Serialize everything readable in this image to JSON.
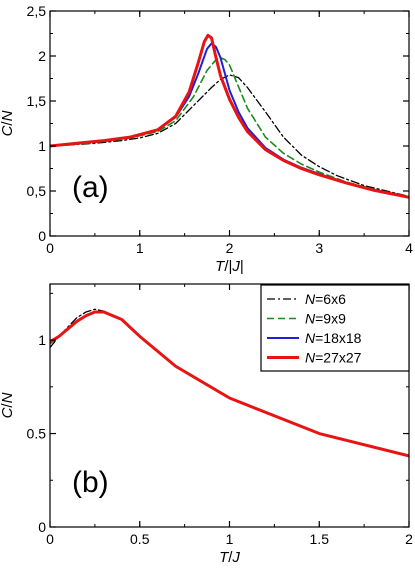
{
  "chart_data": [
    {
      "type": "line",
      "panel_label": "(a)",
      "xlabel_parts": [
        "T",
        "/|",
        "J",
        "|"
      ],
      "ylabel_parts": [
        "C",
        "/",
        "N"
      ],
      "xlim": [
        0,
        4
      ],
      "ylim": [
        0,
        2.5
      ],
      "x_ticks": [
        "0",
        "1",
        "2",
        "3",
        "4"
      ],
      "y_ticks": [
        "0",
        "0,5",
        "1",
        "1,5",
        "2",
        "2,5"
      ],
      "series": [
        {
          "name": "N=6x6",
          "style": "dashdot",
          "color": "#000000",
          "x": [
            0,
            0.2,
            0.5,
            0.8,
            1.0,
            1.2,
            1.4,
            1.6,
            1.8,
            1.9,
            2.0,
            2.1,
            2.2,
            2.4,
            2.6,
            2.8,
            3.0,
            3.2,
            3.5,
            4.0
          ],
          "y": [
            1.0,
            1.01,
            1.03,
            1.06,
            1.09,
            1.14,
            1.25,
            1.45,
            1.65,
            1.74,
            1.79,
            1.76,
            1.65,
            1.38,
            1.1,
            0.9,
            0.77,
            0.67,
            0.56,
            0.44
          ]
        },
        {
          "name": "N=9x9",
          "style": "dashed",
          "color": "#1a8a1a",
          "x": [
            0,
            0.3,
            0.6,
            0.9,
            1.2,
            1.4,
            1.6,
            1.75,
            1.85,
            1.9,
            1.95,
            2.0,
            2.1,
            2.2,
            2.4,
            2.6,
            2.8,
            3.0,
            3.3,
            3.6,
            4.0
          ],
          "y": [
            1.0,
            1.02,
            1.05,
            1.09,
            1.16,
            1.28,
            1.55,
            1.84,
            1.96,
            1.98,
            1.96,
            1.9,
            1.66,
            1.42,
            1.1,
            0.92,
            0.8,
            0.71,
            0.6,
            0.52,
            0.43
          ]
        },
        {
          "name": "N=18x18",
          "style": "solid",
          "color": "#1f1fd6",
          "x": [
            0,
            0.3,
            0.6,
            0.9,
            1.2,
            1.4,
            1.55,
            1.65,
            1.75,
            1.8,
            1.85,
            1.9,
            1.95,
            2.0,
            2.1,
            2.2,
            2.4,
            2.6,
            2.8,
            3.0,
            3.3,
            3.6,
            4.0
          ],
          "y": [
            1.0,
            1.03,
            1.06,
            1.1,
            1.18,
            1.32,
            1.55,
            1.8,
            2.08,
            2.14,
            2.1,
            1.98,
            1.8,
            1.62,
            1.38,
            1.2,
            0.98,
            0.85,
            0.76,
            0.69,
            0.59,
            0.51,
            0.43
          ]
        },
        {
          "name": "N=27x27",
          "style": "solid",
          "color": "#e81414",
          "x": [
            0,
            0.3,
            0.6,
            0.9,
            1.2,
            1.4,
            1.55,
            1.65,
            1.72,
            1.76,
            1.8,
            1.85,
            1.9,
            2.0,
            2.1,
            2.2,
            2.4,
            2.6,
            2.8,
            3.0,
            3.3,
            3.6,
            4.0
          ],
          "y": [
            1.0,
            1.03,
            1.06,
            1.1,
            1.18,
            1.33,
            1.6,
            1.92,
            2.16,
            2.23,
            2.2,
            1.98,
            1.78,
            1.52,
            1.32,
            1.16,
            0.96,
            0.84,
            0.75,
            0.68,
            0.59,
            0.51,
            0.43
          ]
        }
      ]
    },
    {
      "type": "line",
      "panel_label": "(b)",
      "xlabel_parts": [
        "T",
        "/",
        "J"
      ],
      "ylabel_parts": [
        "C",
        "/",
        "N"
      ],
      "xlim": [
        0,
        2
      ],
      "ylim": [
        0,
        1.3
      ],
      "x_ticks": [
        "0",
        "0.5",
        "1",
        "1.5",
        "2"
      ],
      "y_ticks": [
        "0",
        "0.5",
        "1"
      ],
      "series": [
        {
          "name": "N=6x6",
          "style": "dashdot",
          "color": "#000000",
          "x": [
            0,
            0.05,
            0.1,
            0.15,
            0.2,
            0.25,
            0.3,
            0.4,
            0.5,
            0.7,
            1.0,
            1.5,
            2.0
          ],
          "y": [
            0.96,
            1.02,
            1.07,
            1.12,
            1.15,
            1.165,
            1.155,
            1.11,
            1.02,
            0.86,
            0.69,
            0.5,
            0.38
          ]
        },
        {
          "name": "N=9x9",
          "style": "dashed",
          "color": "#1a8a1a",
          "x": [
            0,
            0.05,
            0.1,
            0.15,
            0.2,
            0.25,
            0.3,
            0.4,
            0.5,
            0.7,
            1.0,
            1.5,
            2.0
          ],
          "y": [
            0.98,
            1.02,
            1.06,
            1.1,
            1.13,
            1.15,
            1.15,
            1.11,
            1.02,
            0.86,
            0.69,
            0.5,
            0.38
          ]
        },
        {
          "name": "N=18x18",
          "style": "solid",
          "color": "#1f1fd6",
          "x": [
            0,
            0.05,
            0.1,
            0.15,
            0.2,
            0.25,
            0.3,
            0.4,
            0.5,
            0.7,
            1.0,
            1.5,
            2.0
          ],
          "y": [
            0.99,
            1.02,
            1.06,
            1.1,
            1.13,
            1.15,
            1.15,
            1.11,
            1.02,
            0.86,
            0.69,
            0.5,
            0.38
          ]
        },
        {
          "name": "N=27x27",
          "style": "solid",
          "color": "#e81414",
          "x": [
            0,
            0.05,
            0.1,
            0.15,
            0.2,
            0.25,
            0.3,
            0.4,
            0.5,
            0.7,
            1.0,
            1.5,
            2.0
          ],
          "y": [
            0.99,
            1.02,
            1.06,
            1.1,
            1.13,
            1.15,
            1.15,
            1.11,
            1.02,
            0.86,
            0.69,
            0.5,
            0.38
          ]
        }
      ],
      "legend": {
        "placement": "top-right",
        "entries": [
          {
            "prefix": "N",
            "suffix": "=6x6"
          },
          {
            "prefix": "N",
            "suffix": "=9x9"
          },
          {
            "prefix": "N",
            "suffix": "=18x18"
          },
          {
            "prefix": "N",
            "suffix": "=27x27"
          }
        ]
      }
    }
  ]
}
